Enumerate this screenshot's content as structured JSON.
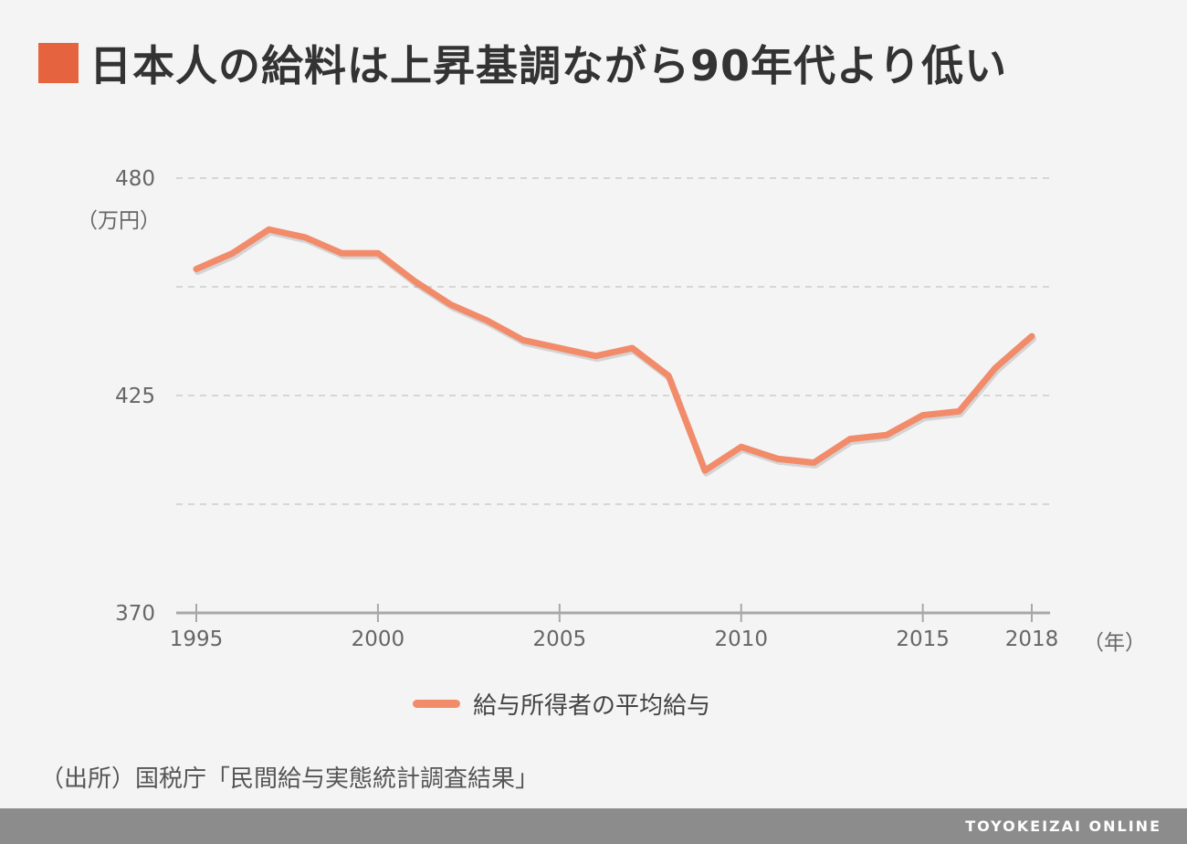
{
  "title": "日本人の給料は上昇基調ながら90年代より低い",
  "unit_label": "（万円）",
  "x_unit_label": "（年）",
  "source": "（出所）国税庁「民間給与実態統計調査結果」",
  "footer": "TOYOKEIZAI ONLINE",
  "colors": {
    "accent": "#e5643f",
    "line": "#f28b6a"
  },
  "chart_data": {
    "type": "line",
    "title": "日本人の給料は上昇基調ながら90年代より低い",
    "ylabel": "（万円）",
    "xlabel": "（年）",
    "ylim": [
      370,
      480
    ],
    "yticks": [
      370,
      425,
      480
    ],
    "xticks": [
      1995,
      2000,
      2005,
      2010,
      2015,
      2018
    ],
    "grid": true,
    "legend_position": "bottom",
    "x": [
      1995,
      1996,
      1997,
      1998,
      1999,
      2000,
      2001,
      2002,
      2003,
      2004,
      2005,
      2006,
      2007,
      2008,
      2009,
      2010,
      2011,
      2012,
      2013,
      2014,
      2015,
      2016,
      2017,
      2018
    ],
    "series": [
      {
        "name": "給与所得者の平均給与",
        "values": [
          457,
          461,
          467,
          465,
          461,
          461,
          454,
          448,
          444,
          439,
          437,
          435,
          437,
          430,
          406,
          412,
          409,
          408,
          414,
          415,
          420,
          421,
          432,
          440
        ]
      }
    ]
  }
}
